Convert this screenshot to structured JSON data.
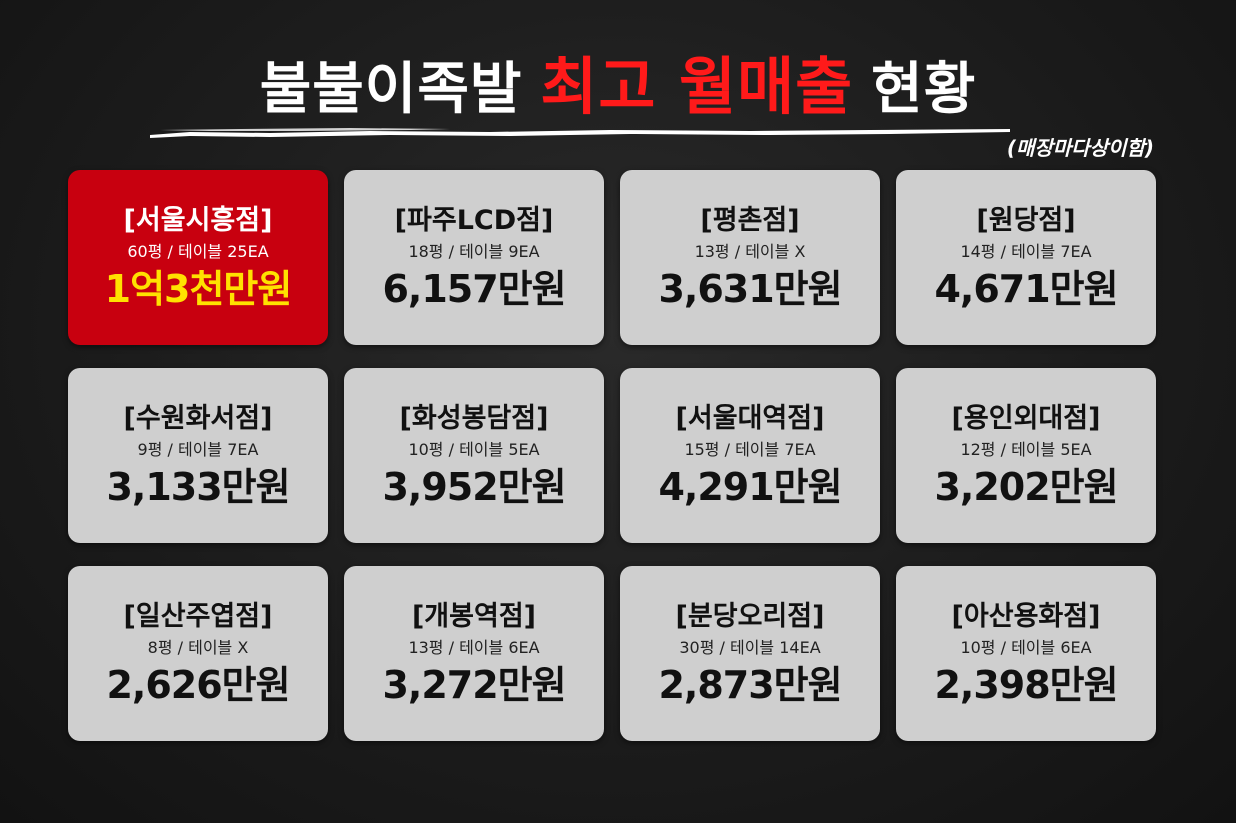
{
  "header": {
    "title_part1": "불불이족발",
    "title_part2": "최고 월매출",
    "title_part3": "현황",
    "note": "(매장마다상이함)"
  },
  "colors": {
    "background": "#1c1c1c",
    "title_text": "#ffffff",
    "title_accent": "#ff1a1a",
    "card": "#cfcfcf",
    "card_highlight": "#c8000f",
    "highlight_sales": "#ffe100"
  },
  "stores": [
    {
      "name": "[서울시흥점]",
      "info": "60평 / 테이블 25EA",
      "sales": "1억3천만원",
      "highlight": true
    },
    {
      "name": "[파주LCD점]",
      "info": "18평 / 테이블 9EA",
      "sales": "6,157만원",
      "highlight": false
    },
    {
      "name": "[평촌점]",
      "info": "13평 / 테이블 X",
      "sales": "3,631만원",
      "highlight": false
    },
    {
      "name": "[원당점]",
      "info": "14평 / 테이블 7EA",
      "sales": "4,671만원",
      "highlight": false
    },
    {
      "name": "[수원화서점]",
      "info": "9평 / 테이블 7EA",
      "sales": "3,133만원",
      "highlight": false
    },
    {
      "name": "[화성봉담점]",
      "info": "10평 / 테이블 5EA",
      "sales": "3,952만원",
      "highlight": false
    },
    {
      "name": "[서울대역점]",
      "info": "15평 / 테이블 7EA",
      "sales": "4,291만원",
      "highlight": false
    },
    {
      "name": "[용인외대점]",
      "info": "12평 / 테이블 5EA",
      "sales": "3,202만원",
      "highlight": false
    },
    {
      "name": "[일산주엽점]",
      "info": "8평 / 테이블 X",
      "sales": "2,626만원",
      "highlight": false
    },
    {
      "name": "[개봉역점]",
      "info": "13평 / 테이블 6EA",
      "sales": "3,272만원",
      "highlight": false
    },
    {
      "name": "[분당오리점]",
      "info": "30평 / 테이블 14EA",
      "sales": "2,873만원",
      "highlight": false
    },
    {
      "name": "[아산용화점]",
      "info": "10평 / 테이블 6EA",
      "sales": "2,398만원",
      "highlight": false
    }
  ]
}
